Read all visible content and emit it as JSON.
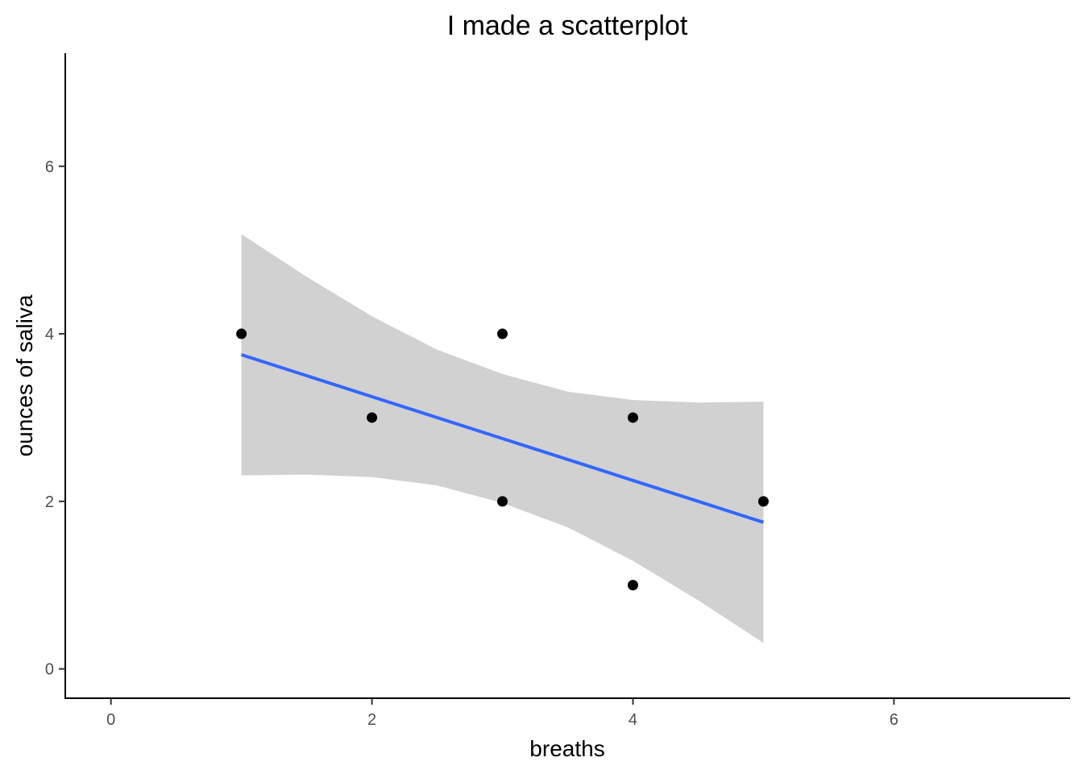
{
  "chart_data": {
    "type": "scatter",
    "title": "I made a scatterplot",
    "xlabel": "breaths",
    "ylabel": "ounces of saliva",
    "xlim": [
      -0.35,
      7.35
    ],
    "ylim": [
      -0.35,
      7.35
    ],
    "xticks": [
      0,
      2,
      4,
      6
    ],
    "yticks": [
      0,
      2,
      4,
      6
    ],
    "grid": false,
    "points": [
      {
        "x": 1,
        "y": 4
      },
      {
        "x": 2,
        "y": 3
      },
      {
        "x": 3,
        "y": 4
      },
      {
        "x": 3,
        "y": 2
      },
      {
        "x": 4,
        "y": 3
      },
      {
        "x": 4,
        "y": 1
      },
      {
        "x": 5,
        "y": 2
      }
    ],
    "fit": {
      "method": "linear",
      "intercept": 4.25,
      "slope": -0.5,
      "x_range": [
        1,
        5
      ],
      "band": [
        {
          "x": 1.0,
          "lo": 2.31,
          "hi": 5.19
        },
        {
          "x": 1.5,
          "lo": 2.32,
          "hi": 4.68
        },
        {
          "x": 2.0,
          "lo": 2.29,
          "hi": 4.21
        },
        {
          "x": 2.5,
          "lo": 2.19,
          "hi": 3.81
        },
        {
          "x": 3.0,
          "lo": 1.98,
          "hi": 3.52
        },
        {
          "x": 3.5,
          "lo": 1.69,
          "hi": 3.31
        },
        {
          "x": 4.0,
          "lo": 1.29,
          "hi": 3.21
        },
        {
          "x": 4.5,
          "lo": 0.82,
          "hi": 3.18
        },
        {
          "x": 5.0,
          "lo": 0.31,
          "hi": 3.19
        }
      ],
      "line_color": "#3366FF",
      "band_color": "#D1D1D1"
    },
    "point_color": "#000000"
  }
}
